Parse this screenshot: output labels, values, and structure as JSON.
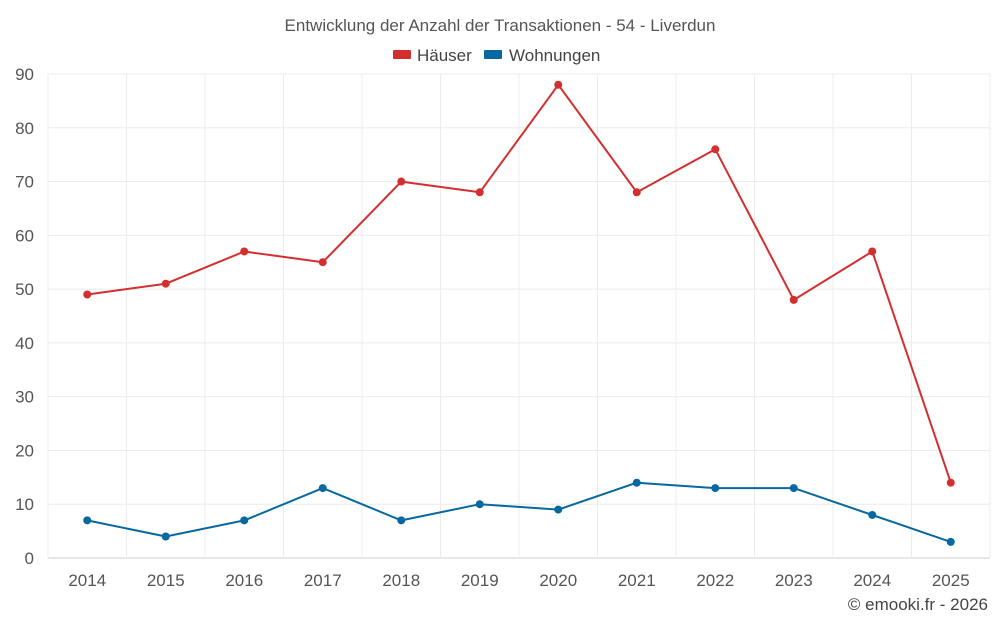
{
  "chart_data": {
    "type": "line",
    "title": "Entwicklung der Anzahl der Transaktionen - 54 - Liverdun",
    "categories": [
      "2014",
      "2015",
      "2016",
      "2017",
      "2018",
      "2019",
      "2020",
      "2021",
      "2022",
      "2023",
      "2024",
      "2025"
    ],
    "series": [
      {
        "name": "Häuser",
        "color": "#d32f2f",
        "values": [
          49,
          51,
          57,
          55,
          70,
          68,
          88,
          68,
          76,
          48,
          57,
          14
        ]
      },
      {
        "name": "Wohnungen",
        "color": "#0868a0",
        "values": [
          7,
          4,
          7,
          13,
          7,
          10,
          9,
          14,
          13,
          13,
          8,
          3
        ]
      }
    ],
    "ylim": [
      0,
      90
    ],
    "yticks": [
      0,
      10,
      20,
      30,
      40,
      50,
      60,
      70,
      80,
      90
    ],
    "grid": true,
    "legend": "top-center",
    "xlabel": "",
    "ylabel": ""
  },
  "credit": "© emooki.fr - 2026"
}
